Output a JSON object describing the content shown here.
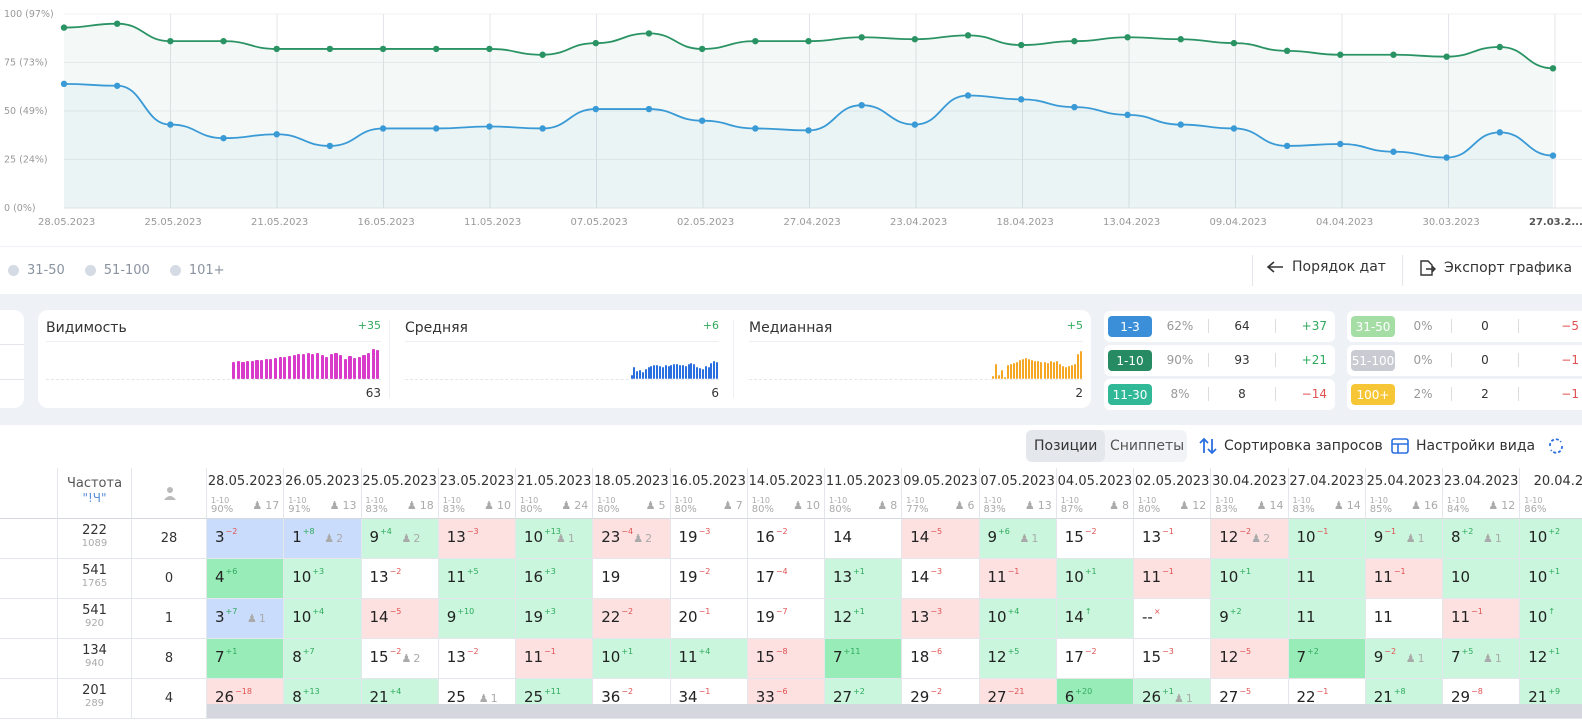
{
  "chart": {
    "y_ticks": [
      "100 (97%)",
      "75 (73%)",
      "50 (49%)",
      "25 (24%)",
      "0 (0%)"
    ],
    "x_ticks": [
      "28.05.2023",
      "25.05.2023",
      "21.05.2023",
      "16.05.2023",
      "11.05.2023",
      "07.05.2023",
      "02.05.2023",
      "27.04.2023",
      "23.04.2023",
      "18.04.2023",
      "13.04.2023",
      "09.04.2023",
      "04.04.2023",
      "30.03.2023",
      "27.03.2..."
    ],
    "colors": {
      "green": "#2a9364",
      "blue": "#3a9ad6"
    }
  },
  "chart_data": {
    "type": "line",
    "ylim": [
      0,
      100
    ],
    "series": [
      {
        "color": "#2a9364",
        "values": [
          93,
          95,
          86,
          86,
          82,
          82,
          82,
          82,
          82,
          79,
          85,
          90,
          82,
          86,
          86,
          88,
          87,
          89,
          84,
          86,
          88,
          87,
          85,
          81,
          79,
          79,
          78,
          83,
          72
        ]
      },
      {
        "color": "#3a9ad6",
        "values": [
          64,
          63,
          43,
          36,
          38,
          32,
          41,
          41,
          42,
          41,
          51,
          51,
          45,
          41,
          40,
          53,
          43,
          58,
          56,
          52,
          48,
          43,
          41,
          32,
          33,
          29,
          26,
          39,
          27
        ]
      }
    ]
  },
  "legend": {
    "items": [
      "31-50",
      "51-100",
      "101+"
    ],
    "date_order": "Порядок дат",
    "export": "Экспорт графика"
  },
  "metrics": [
    {
      "title": "Видимость",
      "delta": "+35",
      "value": "63",
      "color": "#d83ac9",
      "bars": [
        0,
        0,
        0,
        0,
        0,
        0,
        0,
        0,
        0,
        0,
        0,
        0,
        0,
        0,
        0,
        0,
        0,
        0,
        0,
        0,
        0,
        0,
        0,
        0,
        0,
        0,
        0,
        0,
        0,
        0,
        0,
        0,
        0,
        0,
        0,
        0,
        0,
        0,
        0,
        0,
        17,
        18,
        17,
        18,
        18,
        19,
        19,
        20,
        20,
        21,
        22,
        22,
        23,
        24,
        25,
        25,
        26,
        25,
        26,
        24,
        22,
        25,
        26,
        24,
        20,
        23,
        21,
        22,
        24,
        26,
        30,
        29
      ]
    },
    {
      "title": "Средняя",
      "delta": "+6",
      "value": "6",
      "color": "#2a6fe0",
      "bars": [
        0,
        0,
        0,
        0,
        0,
        0,
        0,
        0,
        0,
        0,
        0,
        0,
        0,
        0,
        0,
        0,
        0,
        0,
        0,
        0,
        0,
        0,
        0,
        0,
        0,
        0,
        0,
        0,
        0,
        0,
        0,
        0,
        0,
        0,
        0,
        0,
        0,
        0,
        0,
        0,
        0,
        0,
        0,
        0,
        0,
        0,
        0,
        0,
        0,
        0,
        0,
        0,
        0,
        0,
        0,
        0,
        0,
        0,
        0,
        0,
        0,
        0,
        0,
        0,
        0,
        0,
        0,
        0,
        0,
        0,
        0,
        0,
        0,
        0,
        0,
        0,
        0,
        0,
        0,
        4,
        12,
        8,
        9,
        7,
        10,
        12,
        13,
        14,
        14,
        13,
        12,
        14,
        13,
        14,
        15,
        15,
        14,
        14,
        13,
        15,
        16,
        15,
        12,
        11,
        10,
        13,
        12,
        16,
        18,
        17
      ]
    },
    {
      "title": "Медианная",
      "delta": "+5",
      "value": "2",
      "color": "#f5a623",
      "bars": [
        0,
        0,
        0,
        0,
        0,
        0,
        0,
        0,
        0,
        0,
        0,
        0,
        0,
        0,
        0,
        0,
        0,
        0,
        0,
        0,
        0,
        0,
        0,
        0,
        0,
        0,
        0,
        0,
        0,
        0,
        0,
        0,
        0,
        0,
        0,
        0,
        0,
        0,
        0,
        0,
        0,
        0,
        0,
        0,
        0,
        0,
        0,
        0,
        0,
        0,
        0,
        0,
        0,
        0,
        0,
        0,
        0,
        0,
        0,
        0,
        0,
        0,
        0,
        0,
        0,
        0,
        0,
        0,
        0,
        0,
        0,
        0,
        0,
        0,
        0,
        0,
        0,
        0,
        0,
        0,
        3,
        15,
        4,
        9,
        2,
        14,
        15,
        16,
        17,
        19,
        20,
        21,
        20,
        19,
        18,
        18,
        17,
        17,
        16,
        18,
        17,
        18,
        15,
        13,
        12,
        13,
        14,
        15,
        25,
        28
      ]
    }
  ],
  "distribution": [
    {
      "label": "1-3",
      "pct": "62%",
      "count": "64",
      "delta": "+37",
      "color": "#3a8fd8"
    },
    {
      "label": "1-10",
      "pct": "90%",
      "count": "93",
      "delta": "+21",
      "color": "#268b63"
    },
    {
      "label": "11-30",
      "pct": "8%",
      "count": "8",
      "delta": "−14",
      "color": "#30b897"
    },
    {
      "label": "31-50",
      "pct": "0%",
      "count": "0",
      "delta": "−5",
      "color": "#a5dea5"
    },
    {
      "label": "51-100",
      "pct": "0%",
      "count": "0",
      "delta": "−1",
      "color": "#c8ccd2"
    },
    {
      "label": "100+",
      "pct": "2%",
      "count": "2",
      "delta": "−1",
      "color": "#f7c637"
    }
  ],
  "toolbar": {
    "tab_positions": "Позиции",
    "tab_snippets": "Сниппеты",
    "sort": "Сортировка запросов",
    "view": "Настройки вида"
  },
  "table": {
    "freq_header": "Частота",
    "freq_sub": "\"!Ч\"",
    "columns": [
      {
        "date": "28.05.2023",
        "pct": "90%",
        "users": "17"
      },
      {
        "date": "26.05.2023",
        "pct": "91%",
        "users": "13"
      },
      {
        "date": "25.05.2023",
        "pct": "83%",
        "users": "18"
      },
      {
        "date": "23.05.2023",
        "pct": "83%",
        "users": "10"
      },
      {
        "date": "21.05.2023",
        "pct": "80%",
        "users": "24"
      },
      {
        "date": "18.05.2023",
        "pct": "80%",
        "users": "5"
      },
      {
        "date": "16.05.2023",
        "pct": "80%",
        "users": "7"
      },
      {
        "date": "14.05.2023",
        "pct": "80%",
        "users": "10"
      },
      {
        "date": "11.05.2023",
        "pct": "80%",
        "users": "8"
      },
      {
        "date": "09.05.2023",
        "pct": "77%",
        "users": "6"
      },
      {
        "date": "07.05.2023",
        "pct": "83%",
        "users": "13"
      },
      {
        "date": "04.05.2023",
        "pct": "87%",
        "users": "8"
      },
      {
        "date": "02.05.2023",
        "pct": "80%",
        "users": "12"
      },
      {
        "date": "30.04.2023",
        "pct": "83%",
        "users": "14"
      },
      {
        "date": "27.04.2023",
        "pct": "83%",
        "users": "14"
      },
      {
        "date": "25.04.2023",
        "pct": "85%",
        "users": "16"
      },
      {
        "date": "23.04.2023",
        "pct": "84%",
        "users": "12"
      },
      {
        "date": "20.04.2",
        "pct": "86%",
        "users": ""
      }
    ],
    "range_label": "1-10",
    "rows": [
      {
        "freq": "222",
        "freq2": "1089",
        "users": "28",
        "cells": [
          [
            "3",
            "−2",
            "down",
            "",
            "blue"
          ],
          [
            "1",
            "+8",
            "up",
            "2",
            "blue"
          ],
          [
            "9",
            "+4",
            "up",
            "2",
            "green"
          ],
          [
            "13",
            "−3",
            "down",
            "",
            "red"
          ],
          [
            "10",
            "+13",
            "up",
            "1",
            "green"
          ],
          [
            "23",
            "−4",
            "down",
            "2",
            "red"
          ],
          [
            "19",
            "−3",
            "down",
            "",
            "white"
          ],
          [
            "16",
            "−2",
            "down",
            "",
            "white"
          ],
          [
            "14",
            "",
            "",
            "",
            "white"
          ],
          [
            "14",
            "−5",
            "down",
            "",
            "red"
          ],
          [
            "9",
            "+6",
            "up",
            "1",
            "green"
          ],
          [
            "15",
            "−2",
            "down",
            "",
            "white"
          ],
          [
            "13",
            "−1",
            "down",
            "",
            "white"
          ],
          [
            "12",
            "−2",
            "down",
            "2",
            "red"
          ],
          [
            "10",
            "−1",
            "down",
            "",
            "green"
          ],
          [
            "9",
            "−1",
            "down",
            "1",
            "green"
          ],
          [
            "8",
            "+2",
            "up",
            "1",
            "green"
          ],
          [
            "10",
            "+2",
            "up",
            "",
            "green"
          ]
        ]
      },
      {
        "freq": "541",
        "freq2": "1765",
        "users": "0",
        "cells": [
          [
            "4",
            "+6",
            "up",
            "",
            "dgreen"
          ],
          [
            "10",
            "+3",
            "up",
            "",
            "green"
          ],
          [
            "13",
            "−2",
            "down",
            "",
            "white"
          ],
          [
            "11",
            "+5",
            "up",
            "",
            "green"
          ],
          [
            "16",
            "+3",
            "up",
            "",
            "green"
          ],
          [
            "19",
            "",
            "",
            "",
            "white"
          ],
          [
            "19",
            "−2",
            "down",
            "",
            "white"
          ],
          [
            "17",
            "−4",
            "down",
            "",
            "white"
          ],
          [
            "13",
            "+1",
            "up",
            "",
            "green"
          ],
          [
            "14",
            "−3",
            "down",
            "",
            "white"
          ],
          [
            "11",
            "−1",
            "down",
            "",
            "red"
          ],
          [
            "10",
            "+1",
            "up",
            "",
            "green"
          ],
          [
            "11",
            "−1",
            "down",
            "",
            "red"
          ],
          [
            "10",
            "+1",
            "up",
            "",
            "green"
          ],
          [
            "11",
            "",
            "",
            "",
            "green"
          ],
          [
            "11",
            "−1",
            "down",
            "",
            "red"
          ],
          [
            "10",
            "",
            "",
            "",
            "green"
          ],
          [
            "10",
            "+1",
            "up",
            "",
            "green"
          ]
        ]
      },
      {
        "freq": "541",
        "freq2": "920",
        "users": "1",
        "cells": [
          [
            "3",
            "+7",
            "up",
            "1",
            "blue"
          ],
          [
            "10",
            "+4",
            "up",
            "",
            "green"
          ],
          [
            "14",
            "−5",
            "down",
            "",
            "red"
          ],
          [
            "9",
            "+10",
            "up",
            "",
            "green"
          ],
          [
            "19",
            "+3",
            "up",
            "",
            "green"
          ],
          [
            "22",
            "−2",
            "down",
            "",
            "red"
          ],
          [
            "20",
            "−1",
            "down",
            "",
            "white"
          ],
          [
            "19",
            "−7",
            "down",
            "",
            "white"
          ],
          [
            "12",
            "+1",
            "up",
            "",
            "green"
          ],
          [
            "13",
            "−3",
            "down",
            "",
            "red"
          ],
          [
            "10",
            "+4",
            "up",
            "",
            "green"
          ],
          [
            "14",
            "↑",
            "up",
            "",
            "green"
          ],
          [
            "--",
            "×",
            "down",
            "",
            "white"
          ],
          [
            "9",
            "+2",
            "up",
            "",
            "green"
          ],
          [
            "11",
            "",
            "",
            "",
            "green"
          ],
          [
            "11",
            "",
            "",
            "",
            "white"
          ],
          [
            "11",
            "−1",
            "down",
            "",
            "red"
          ],
          [
            "10",
            "↑",
            "up",
            "",
            "green"
          ]
        ]
      },
      {
        "freq": "134",
        "freq2": "940",
        "users": "8",
        "cells": [
          [
            "7",
            "+1",
            "up",
            "",
            "dgreen"
          ],
          [
            "8",
            "+7",
            "up",
            "",
            "green"
          ],
          [
            "15",
            "−2",
            "down",
            "2",
            "white"
          ],
          [
            "13",
            "−2",
            "down",
            "",
            "white"
          ],
          [
            "11",
            "−1",
            "down",
            "",
            "red"
          ],
          [
            "10",
            "+1",
            "up",
            "",
            "green"
          ],
          [
            "11",
            "+4",
            "up",
            "",
            "green"
          ],
          [
            "15",
            "−8",
            "down",
            "",
            "red"
          ],
          [
            "7",
            "+11",
            "up",
            "",
            "dgreen"
          ],
          [
            "18",
            "−6",
            "down",
            "",
            "white"
          ],
          [
            "12",
            "+5",
            "up",
            "",
            "green"
          ],
          [
            "17",
            "−2",
            "down",
            "",
            "white"
          ],
          [
            "15",
            "−3",
            "down",
            "",
            "white"
          ],
          [
            "12",
            "−5",
            "down",
            "",
            "red"
          ],
          [
            "7",
            "+2",
            "up",
            "",
            "dgreen"
          ],
          [
            "9",
            "−2",
            "down",
            "1",
            "green"
          ],
          [
            "7",
            "+5",
            "up",
            "1",
            "green"
          ],
          [
            "12",
            "+1",
            "up",
            "",
            "green"
          ]
        ]
      },
      {
        "freq": "201",
        "freq2": "289",
        "users": "4",
        "cells": [
          [
            "26",
            "−18",
            "down",
            "",
            "red"
          ],
          [
            "8",
            "+13",
            "up",
            "",
            "green"
          ],
          [
            "21",
            "+4",
            "up",
            "",
            "green"
          ],
          [
            "25",
            "",
            "",
            "1",
            "white"
          ],
          [
            "25",
            "+11",
            "up",
            "",
            "green"
          ],
          [
            "36",
            "−2",
            "down",
            "",
            "white"
          ],
          [
            "34",
            "−1",
            "down",
            "",
            "white"
          ],
          [
            "33",
            "−6",
            "down",
            "",
            "red"
          ],
          [
            "27",
            "+2",
            "up",
            "",
            "green"
          ],
          [
            "29",
            "−2",
            "down",
            "",
            "white"
          ],
          [
            "27",
            "−21",
            "down",
            "",
            "red"
          ],
          [
            "6",
            "+20",
            "up",
            "",
            "dgreen"
          ],
          [
            "26",
            "+1",
            "up",
            "1",
            "green"
          ],
          [
            "27",
            "−5",
            "down",
            "",
            "white"
          ],
          [
            "22",
            "−1",
            "down",
            "",
            "white"
          ],
          [
            "21",
            "+8",
            "up",
            "",
            "green"
          ],
          [
            "29",
            "−8",
            "down",
            "",
            "white"
          ],
          [
            "21",
            "+9",
            "up",
            "",
            "green"
          ]
        ]
      }
    ]
  }
}
